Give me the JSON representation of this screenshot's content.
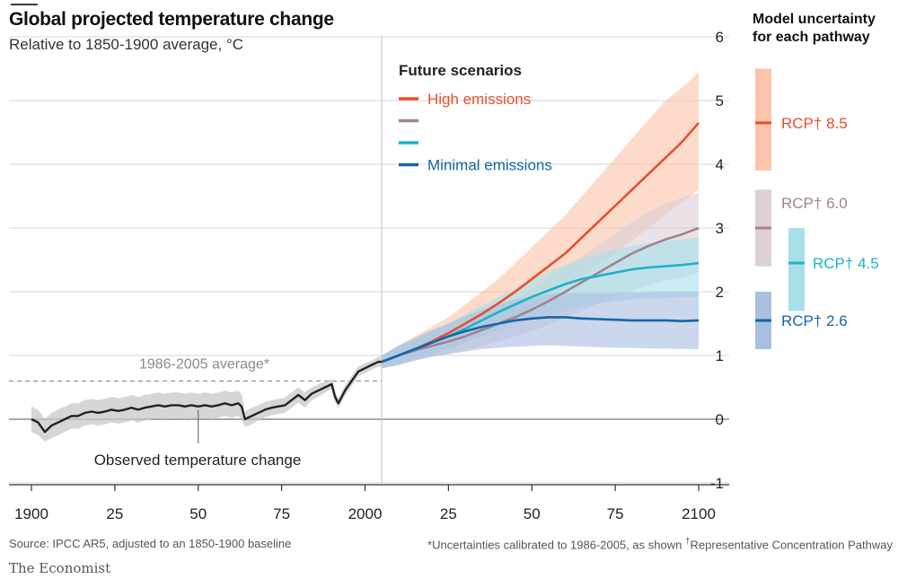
{
  "title": "Global projected temperature change",
  "subtitle": "Relative to 1850-1900 average, °C",
  "uncertainty_title": [
    "Model uncertainty",
    "for each pathway"
  ],
  "source": "Source: IPCC AR5, adjusted to an 1850-1900 baseline",
  "footnote": "*Uncertainties calibrated to 1986-2005, as shown",
  "footnote_dagger": "†",
  "footnote_rcp": "Representative Concentration Pathway",
  "brand": "The Economist",
  "colors": {
    "observed": "#222222",
    "observed_band": "#c8c8c8",
    "rcp85": "#e94e2d",
    "rcp85_band": "#fbc5ab",
    "rcp60": "#a3828e",
    "rcp60_band": "#ddd0d6",
    "rcp45": "#1db2c9",
    "rcp45_band": "#a8e0ea",
    "rcp26": "#1565a6",
    "rcp26_band": "#a9bfe0",
    "grid": "#d7d7d7"
  },
  "chart_data": {
    "type": "line",
    "title": "Global projected temperature change",
    "subtitle": "Relative to 1850-1900 average, °C",
    "xlim": [
      1900,
      2100
    ],
    "ylim": [
      -1,
      6
    ],
    "x_ticks": [
      {
        "value": 1900,
        "label": "1900"
      },
      {
        "value": 1925,
        "label": "25"
      },
      {
        "value": 1950,
        "label": "50"
      },
      {
        "value": 1975,
        "label": "75"
      },
      {
        "value": 2000,
        "label": "2000"
      },
      {
        "value": 2025,
        "label": "25"
      },
      {
        "value": 2050,
        "label": "50"
      },
      {
        "value": 2075,
        "label": "75"
      },
      {
        "value": 2100,
        "label": "2100"
      }
    ],
    "y_ticks": [
      {
        "value": -1,
        "label": "-1"
      },
      {
        "value": 0,
        "label": "0"
      },
      {
        "value": 1,
        "label": "1"
      },
      {
        "value": 2,
        "label": "2"
      },
      {
        "value": 3,
        "label": "3"
      },
      {
        "value": 4,
        "label": "4"
      },
      {
        "value": 5,
        "label": "5"
      },
      {
        "value": 6,
        "label": "6"
      }
    ],
    "grid": true,
    "projection_start": 2005,
    "reference": {
      "label": "1986-2005 average*",
      "value": 0.6
    },
    "observed": {
      "label": "Observed temperature change",
      "label_at": [
        1950,
        0.2
      ],
      "x": [
        1900,
        1902,
        1904,
        1906,
        1908,
        1910,
        1912,
        1914,
        1916,
        1918,
        1920,
        1922,
        1924,
        1926,
        1928,
        1930,
        1932,
        1934,
        1936,
        1938,
        1940,
        1942,
        1944,
        1946,
        1948,
        1950,
        1952,
        1954,
        1956,
        1958,
        1960,
        1962,
        1963,
        1964,
        1966,
        1968,
        1970,
        1972,
        1974,
        1976,
        1978,
        1980,
        1982,
        1984,
        1986,
        1988,
        1990,
        1991,
        1992,
        1994,
        1996,
        1998,
        2000,
        2002,
        2004,
        2005
      ],
      "y": [
        0.0,
        -0.05,
        -0.2,
        -0.1,
        -0.05,
        0.0,
        0.05,
        0.05,
        0.1,
        0.12,
        0.1,
        0.12,
        0.15,
        0.13,
        0.15,
        0.18,
        0.15,
        0.18,
        0.2,
        0.22,
        0.2,
        0.22,
        0.22,
        0.2,
        0.22,
        0.2,
        0.22,
        0.2,
        0.22,
        0.25,
        0.22,
        0.25,
        0.2,
        0.0,
        0.05,
        0.1,
        0.15,
        0.18,
        0.2,
        0.22,
        0.3,
        0.38,
        0.3,
        0.4,
        0.45,
        0.5,
        0.55,
        0.35,
        0.25,
        0.45,
        0.6,
        0.75,
        0.8,
        0.85,
        0.9,
        0.9
      ],
      "band_low": [
        -0.2,
        -0.25,
        -0.35,
        -0.3,
        -0.25,
        -0.2,
        -0.15,
        -0.15,
        -0.1,
        -0.08,
        -0.1,
        -0.08,
        -0.05,
        -0.07,
        -0.05,
        -0.02,
        -0.05,
        -0.02,
        0.0,
        0.02,
        0.0,
        0.02,
        0.02,
        0.0,
        0.02,
        0.0,
        0.02,
        0.0,
        0.02,
        0.05,
        0.02,
        0.05,
        0.0,
        -0.12,
        -0.08,
        -0.02,
        0.03,
        0.06,
        0.08,
        0.1,
        0.18,
        0.26,
        0.18,
        0.3,
        0.35,
        0.42,
        0.47,
        0.27,
        0.17,
        0.37,
        0.52,
        0.67,
        0.72,
        0.78,
        0.82,
        0.82
      ],
      "band_high": [
        0.2,
        0.15,
        0.0,
        0.1,
        0.15,
        0.2,
        0.25,
        0.25,
        0.3,
        0.32,
        0.3,
        0.32,
        0.35,
        0.33,
        0.35,
        0.38,
        0.35,
        0.38,
        0.4,
        0.42,
        0.4,
        0.42,
        0.42,
        0.4,
        0.42,
        0.4,
        0.42,
        0.4,
        0.42,
        0.45,
        0.42,
        0.45,
        0.4,
        0.12,
        0.18,
        0.22,
        0.27,
        0.3,
        0.32,
        0.34,
        0.42,
        0.5,
        0.42,
        0.5,
        0.55,
        0.58,
        0.63,
        0.43,
        0.33,
        0.53,
        0.68,
        0.83,
        0.88,
        0.92,
        0.98,
        0.98
      ]
    },
    "legend": {
      "title": "Future scenarios",
      "placement": "top-left of projection"
    },
    "series": [
      {
        "name": "RCP† 8.5",
        "legend_label": "High emissions",
        "color_key": "rcp85",
        "x": [
          2005,
          2010,
          2015,
          2020,
          2025,
          2030,
          2035,
          2040,
          2045,
          2050,
          2055,
          2060,
          2065,
          2070,
          2075,
          2080,
          2085,
          2090,
          2095,
          2100
        ],
        "values": [
          0.9,
          1.0,
          1.1,
          1.22,
          1.35,
          1.5,
          1.65,
          1.82,
          2.0,
          2.2,
          2.4,
          2.6,
          2.85,
          3.1,
          3.35,
          3.6,
          3.85,
          4.1,
          4.35,
          4.65
        ],
        "band_low": [
          0.8,
          0.85,
          0.95,
          1.0,
          1.1,
          1.2,
          1.3,
          1.45,
          1.6,
          1.75,
          1.9,
          2.05,
          2.25,
          2.45,
          2.6,
          2.8,
          3.0,
          3.2,
          3.4,
          3.6
        ],
        "band_high": [
          1.0,
          1.15,
          1.3,
          1.45,
          1.6,
          1.8,
          2.0,
          2.2,
          2.45,
          2.7,
          2.95,
          3.2,
          3.5,
          3.8,
          4.1,
          4.4,
          4.7,
          5.0,
          5.2,
          5.45
        ],
        "range": [
          3.9,
          5.5
        ]
      },
      {
        "name": "RCP† 6.0",
        "legend_label": "",
        "color_key": "rcp60",
        "x": [
          2005,
          2010,
          2015,
          2020,
          2025,
          2030,
          2035,
          2040,
          2045,
          2050,
          2055,
          2060,
          2065,
          2070,
          2075,
          2080,
          2085,
          2090,
          2095,
          2100
        ],
        "values": [
          0.9,
          1.0,
          1.08,
          1.15,
          1.22,
          1.3,
          1.4,
          1.5,
          1.6,
          1.72,
          1.85,
          2.0,
          2.15,
          2.3,
          2.45,
          2.6,
          2.72,
          2.82,
          2.9,
          3.0
        ],
        "band_low": [
          0.8,
          0.85,
          0.92,
          0.98,
          1.02,
          1.08,
          1.15,
          1.22,
          1.3,
          1.38,
          1.48,
          1.6,
          1.7,
          1.82,
          1.92,
          2.02,
          2.1,
          2.18,
          2.22,
          2.3
        ],
        "band_high": [
          1.0,
          1.12,
          1.22,
          1.32,
          1.42,
          1.52,
          1.64,
          1.76,
          1.9,
          2.05,
          2.2,
          2.38,
          2.55,
          2.75,
          2.92,
          3.1,
          3.25,
          3.38,
          3.48,
          3.55
        ],
        "range": [
          2.4,
          3.6
        ]
      },
      {
        "name": "RCP† 4.5",
        "legend_label": "",
        "color_key": "rcp45",
        "x": [
          2005,
          2010,
          2015,
          2020,
          2025,
          2030,
          2035,
          2040,
          2045,
          2050,
          2055,
          2060,
          2065,
          2070,
          2075,
          2080,
          2085,
          2090,
          2095,
          2100
        ],
        "values": [
          0.9,
          1.0,
          1.1,
          1.2,
          1.3,
          1.42,
          1.55,
          1.68,
          1.8,
          1.92,
          2.02,
          2.12,
          2.2,
          2.25,
          2.3,
          2.35,
          2.38,
          2.4,
          2.42,
          2.45
        ],
        "band_low": [
          0.8,
          0.85,
          0.95,
          1.02,
          1.1,
          1.2,
          1.3,
          1.4,
          1.5,
          1.58,
          1.65,
          1.72,
          1.78,
          1.82,
          1.85,
          1.88,
          1.9,
          1.9,
          1.92,
          1.92
        ],
        "band_high": [
          1.0,
          1.15,
          1.25,
          1.38,
          1.5,
          1.65,
          1.78,
          1.92,
          2.05,
          2.2,
          2.32,
          2.42,
          2.52,
          2.6,
          2.66,
          2.72,
          2.76,
          2.8,
          2.82,
          2.85
        ],
        "range": [
          1.7,
          3.0
        ]
      },
      {
        "name": "RCP† 2.6",
        "legend_label": "Minimal emissions",
        "color_key": "rcp26",
        "x": [
          2005,
          2010,
          2015,
          2020,
          2025,
          2030,
          2035,
          2040,
          2045,
          2050,
          2055,
          2060,
          2065,
          2070,
          2075,
          2080,
          2085,
          2090,
          2095,
          2100
        ],
        "values": [
          0.9,
          1.0,
          1.1,
          1.2,
          1.3,
          1.38,
          1.45,
          1.5,
          1.55,
          1.58,
          1.6,
          1.6,
          1.58,
          1.57,
          1.56,
          1.55,
          1.55,
          1.55,
          1.54,
          1.55
        ],
        "band_low": [
          0.8,
          0.85,
          0.92,
          0.98,
          1.02,
          1.06,
          1.1,
          1.12,
          1.14,
          1.15,
          1.16,
          1.15,
          1.14,
          1.13,
          1.12,
          1.12,
          1.11,
          1.11,
          1.1,
          1.1
        ],
        "band_high": [
          1.0,
          1.15,
          1.28,
          1.4,
          1.5,
          1.62,
          1.72,
          1.8,
          1.88,
          1.92,
          1.96,
          1.98,
          1.98,
          1.98,
          1.98,
          1.99,
          1.99,
          2.0,
          2.0,
          2.0
        ],
        "range": [
          1.1,
          2.0
        ]
      }
    ]
  }
}
